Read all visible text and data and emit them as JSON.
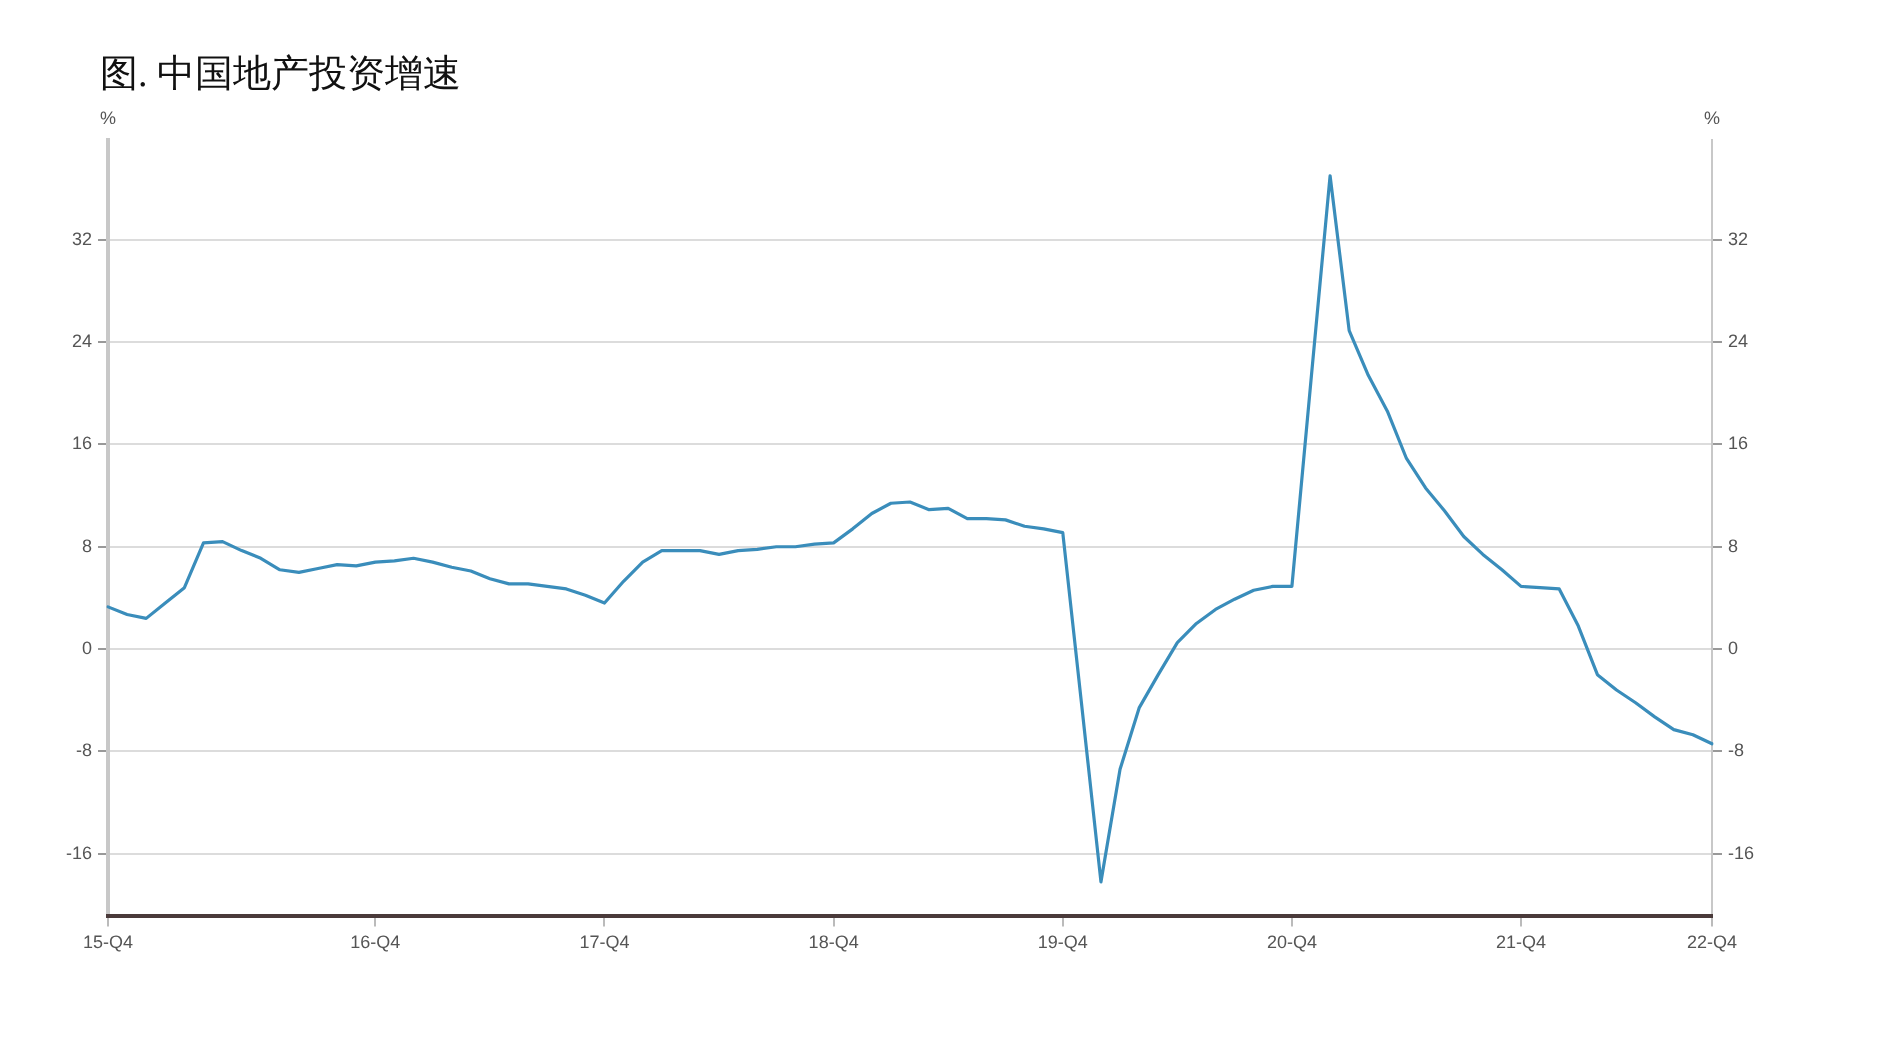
{
  "chart_data": {
    "type": "line",
    "title": "图. 中国地产投资增速",
    "ylabel": "%",
    "y2label": "%",
    "categories": [
      "15-Q4",
      null,
      null,
      null,
      null,
      null,
      null,
      null,
      null,
      null,
      null,
      null,
      null,
      null,
      "16-Q4",
      null,
      null,
      null,
      null,
      null,
      null,
      null,
      null,
      null,
      null,
      null,
      "17-Q4",
      null,
      null,
      null,
      null,
      null,
      null,
      null,
      null,
      null,
      null,
      null,
      "18-Q4",
      null,
      null,
      null,
      null,
      null,
      null,
      null,
      null,
      null,
      null,
      null,
      "19-Q4",
      null,
      null,
      null,
      null,
      null,
      null,
      null,
      null,
      null,
      null,
      null,
      "20-Q4",
      null,
      null,
      null,
      null,
      null,
      null,
      null,
      null,
      null,
      null,
      null,
      "21-Q4",
      null,
      null,
      null,
      null,
      null,
      null,
      null,
      null,
      null,
      "22-Q4"
    ],
    "series": [
      {
        "color": "#3a8dbb",
        "values": [
          3.3,
          2.7,
          2.4,
          3.6,
          4.8,
          8.3,
          8.4,
          7.7,
          7.1,
          6.2,
          6.0,
          6.3,
          6.6,
          6.5,
          6.8,
          6.9,
          7.1,
          6.8,
          6.4,
          6.1,
          5.5,
          5.1,
          5.1,
          4.9,
          4.7,
          4.2,
          3.6,
          5.3,
          6.8,
          7.7,
          7.7,
          7.7,
          7.4,
          7.7,
          7.8,
          8.0,
          8.0,
          8.2,
          8.3,
          9.4,
          10.6,
          11.4,
          11.5,
          10.9,
          11.0,
          10.2,
          10.2,
          10.1,
          9.6,
          9.4,
          9.1,
          -4.5,
          -18.2,
          -9.4,
          -4.6,
          -2.0,
          0.5,
          2.0,
          3.1,
          3.9,
          4.6,
          4.9,
          4.9,
          21,
          37.0,
          24.9,
          21.4,
          18.6,
          14.9,
          12.6,
          10.8,
          8.8,
          7.4,
          6.2,
          4.9,
          4.8,
          4.7,
          1.8,
          -2.0,
          -3.2,
          -4.2,
          -5.3,
          -6.3,
          -6.7,
          -7.4
        ]
      }
    ],
    "ylim": [
      -20.9,
      39.8
    ],
    "yticks": [
      -16,
      -8,
      0,
      8,
      16,
      24,
      32
    ],
    "y2lim": [
      -20.9,
      39.8
    ],
    "y2ticks": [
      -16,
      -8,
      0,
      8,
      16,
      24,
      32
    ],
    "grid": "y",
    "legend": false,
    "marker": "none",
    "line_style": "solid"
  }
}
